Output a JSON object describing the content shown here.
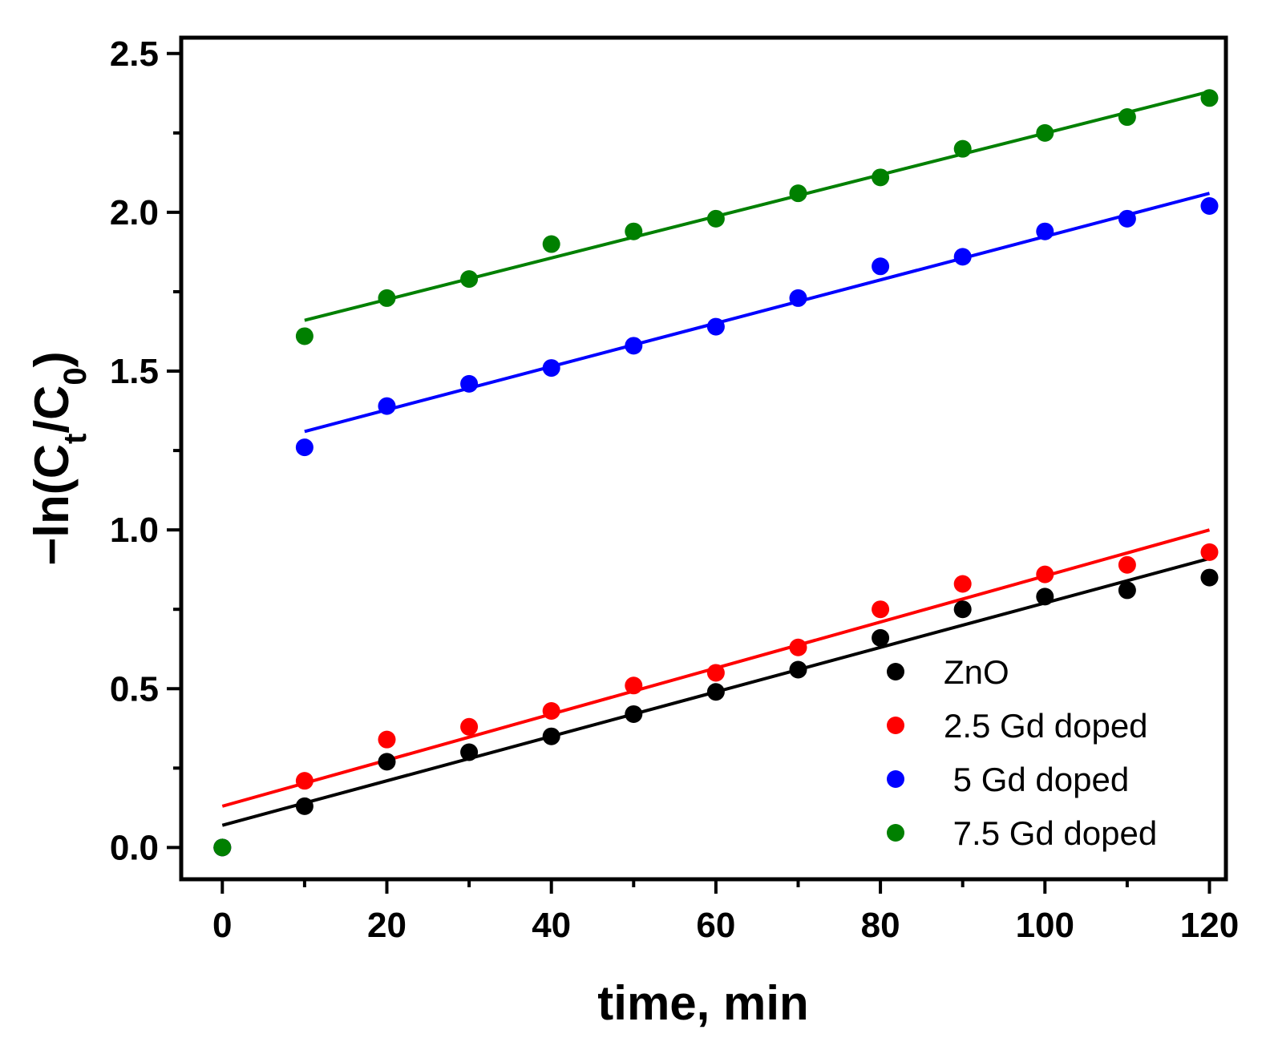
{
  "chart_data": {
    "type": "scatter",
    "title": "",
    "xlabel": "time, min",
    "ylabel": {
      "prefix": "−ln(C",
      "sub1": "t",
      "mid": "/C",
      "sub2": "0",
      "suffix": ")"
    },
    "xlim": [
      -5,
      122
    ],
    "ylim": [
      -0.1,
      2.55
    ],
    "xticks": [
      0,
      20,
      40,
      60,
      80,
      100,
      120
    ],
    "yticks": [
      0.0,
      0.5,
      1.0,
      1.5,
      2.0,
      2.5
    ],
    "xtick_labels": [
      "0",
      "20",
      "40",
      "60",
      "80",
      "100",
      "120"
    ],
    "ytick_labels": [
      "0.0",
      "0.5",
      "1.0",
      "1.5",
      "2.0",
      "2.5"
    ],
    "legend_position": "bottom-right",
    "grid": false,
    "series": [
      {
        "name": "ZnO",
        "color": "#000000",
        "x": [
          0,
          10,
          20,
          30,
          40,
          50,
          60,
          70,
          80,
          90,
          100,
          110,
          120
        ],
        "y": [
          0.0,
          0.13,
          0.27,
          0.3,
          0.35,
          0.42,
          0.49,
          0.56,
          0.66,
          0.75,
          0.79,
          0.81,
          0.85
        ],
        "fit": {
          "x": [
            0,
            120
          ],
          "y": [
            0.07,
            0.91
          ]
        }
      },
      {
        "name": "2.5 Gd doped",
        "color": "#ff0000",
        "x": [
          0,
          10,
          20,
          30,
          40,
          50,
          60,
          70,
          80,
          90,
          100,
          110,
          120
        ],
        "y": [
          0.0,
          0.21,
          0.34,
          0.38,
          0.43,
          0.51,
          0.55,
          0.63,
          0.75,
          0.83,
          0.86,
          0.89,
          0.93
        ],
        "fit": {
          "x": [
            0,
            120
          ],
          "y": [
            0.13,
            1.0
          ]
        }
      },
      {
        "name": " 5 Gd doped",
        "color": "#0000ff",
        "x": [
          0,
          10,
          20,
          30,
          40,
          50,
          60,
          70,
          80,
          90,
          100,
          110,
          120
        ],
        "y": [
          0.0,
          1.26,
          1.39,
          1.46,
          1.51,
          1.58,
          1.64,
          1.73,
          1.83,
          1.86,
          1.94,
          1.98,
          2.02
        ],
        "fit": {
          "x": [
            10,
            120
          ],
          "y": [
            1.31,
            2.06
          ]
        }
      },
      {
        "name": " 7.5 Gd doped",
        "color": "#008000",
        "x": [
          0,
          10,
          20,
          30,
          40,
          50,
          60,
          70,
          80,
          90,
          100,
          110,
          120
        ],
        "y": [
          0.0,
          1.61,
          1.73,
          1.79,
          1.9,
          1.94,
          1.98,
          2.06,
          2.11,
          2.2,
          2.25,
          2.3,
          2.36
        ],
        "fit": {
          "x": [
            10,
            120
          ],
          "y": [
            1.66,
            2.38
          ]
        }
      }
    ]
  }
}
